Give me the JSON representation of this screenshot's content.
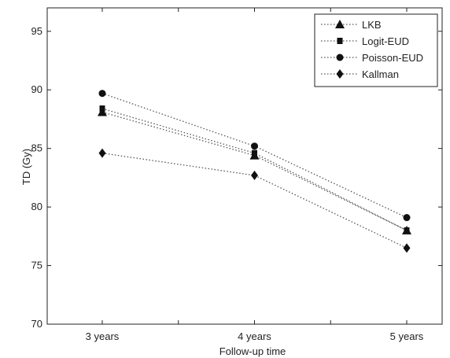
{
  "chart_data": {
    "type": "line",
    "xlabel": "Follow-up time",
    "ylabel": "TD (Gy)",
    "categories": [
      "3  years",
      "4  years",
      "5  years"
    ],
    "ylim": [
      70,
      97
    ],
    "yticks": [
      70,
      75,
      80,
      85,
      90,
      95
    ],
    "grid": false,
    "legend_position": "top-right",
    "line_style": "dotted",
    "series": [
      {
        "name": "LKB",
        "marker": "triangle",
        "values": [
          88.1,
          84.4,
          78.0
        ]
      },
      {
        "name": "Logit-EUD",
        "marker": "square",
        "values": [
          88.4,
          84.6,
          78.0
        ]
      },
      {
        "name": "Poisson-EUD",
        "marker": "circle",
        "values": [
          89.7,
          85.2,
          79.1
        ]
      },
      {
        "name": "Kallman",
        "marker": "diamond",
        "values": [
          84.6,
          82.7,
          76.5
        ]
      }
    ],
    "colors": {
      "line": "#555555",
      "marker": "#111111",
      "axis": "#222222"
    }
  }
}
